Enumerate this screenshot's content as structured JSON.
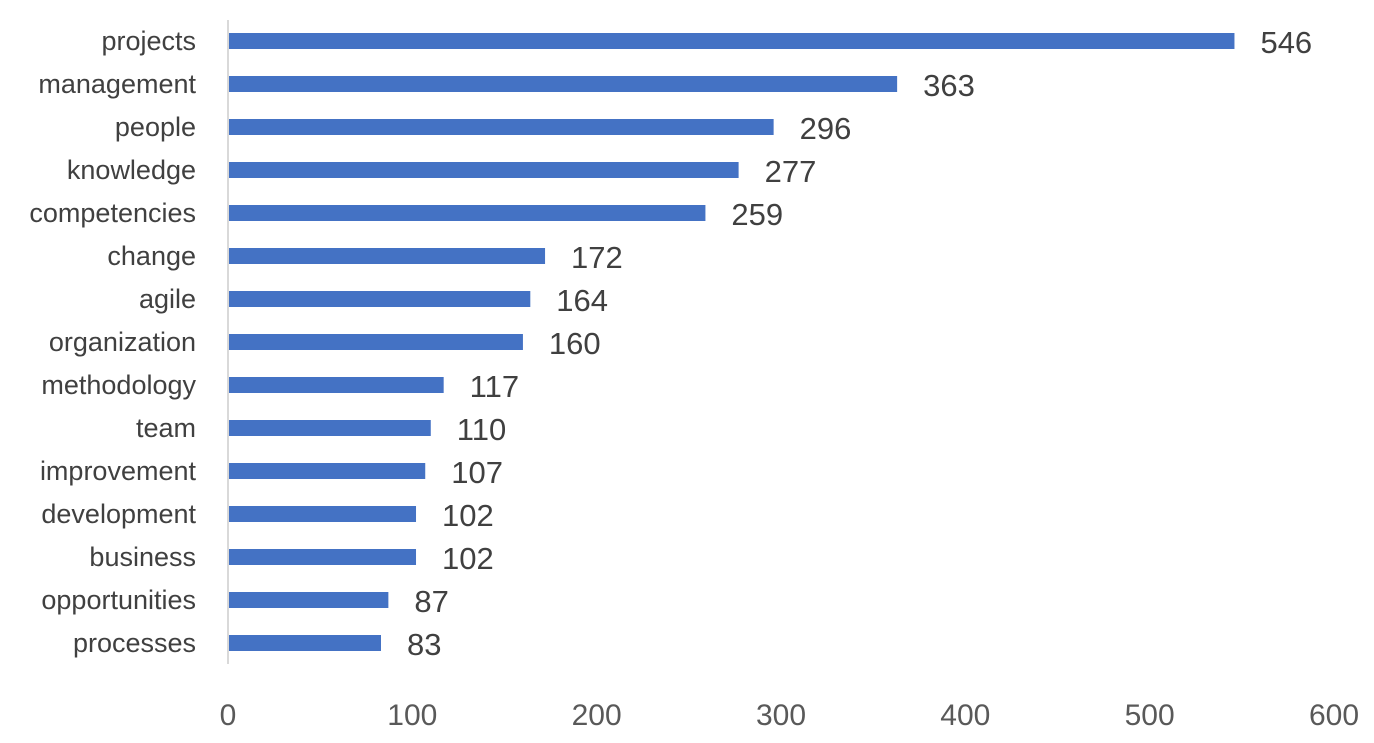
{
  "chart_data": {
    "type": "bar",
    "orientation": "horizontal",
    "categories": [
      "projects",
      "management",
      "people",
      "knowledge",
      "competencies",
      "change",
      "agile",
      "organization",
      "methodology",
      "team",
      "improvement",
      "development",
      "business",
      "opportunities",
      "processes"
    ],
    "values": [
      546,
      363,
      296,
      277,
      259,
      172,
      164,
      160,
      117,
      110,
      107,
      102,
      102,
      87,
      83
    ],
    "data_labels": [
      "546",
      "363",
      "296",
      "277",
      "259",
      "172",
      "164",
      "160",
      "117",
      "110",
      "107",
      "102",
      "102",
      "87",
      "83"
    ],
    "xlim": [
      0,
      600
    ],
    "x_ticks": [
      "0",
      "100",
      "200",
      "300",
      "400",
      "500",
      "600"
    ],
    "title": "",
    "xlabel": "",
    "ylabel": "",
    "grid": false,
    "legend": "none",
    "bar_color": "#4472C4",
    "axis_color": "#D9D9D9"
  }
}
